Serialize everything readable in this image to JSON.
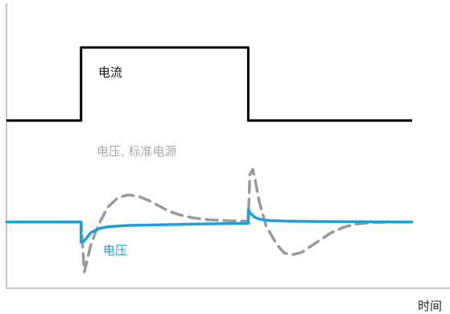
{
  "chart_data": {
    "type": "line",
    "xlabel": "时间",
    "ylabel": "",
    "xlim": [
      0,
      100
    ],
    "ylim": [
      0,
      100
    ],
    "grid": false,
    "series": [
      {
        "name": "电流",
        "color": "#000000",
        "style": "solid",
        "points": [
          [
            0,
            62
          ],
          [
            18.4,
            62
          ],
          [
            18.4,
            89
          ],
          [
            59.6,
            89
          ],
          [
            59.6,
            62
          ],
          [
            100,
            62
          ]
        ]
      },
      {
        "name": "电压, 标准电源",
        "color": "#9a9a9a",
        "style": "dashed",
        "points": [
          [
            0,
            24.5
          ],
          [
            18.4,
            24.5
          ],
          [
            19.2,
            6
          ],
          [
            20.8,
            16
          ],
          [
            22.7,
            23.5
          ],
          [
            25,
            30
          ],
          [
            27.5,
            33.5
          ],
          [
            30,
            34.5
          ],
          [
            32.5,
            34
          ],
          [
            35,
            32.5
          ],
          [
            37.5,
            30.5
          ],
          [
            40,
            28.5
          ],
          [
            43,
            27
          ],
          [
            46,
            26
          ],
          [
            50,
            25.3
          ],
          [
            55,
            24.9
          ],
          [
            59.6,
            24.8
          ],
          [
            60,
            42
          ],
          [
            60.7,
            44
          ],
          [
            61.3,
            40
          ],
          [
            62.3,
            32
          ],
          [
            64,
            23
          ],
          [
            66.7,
            16
          ],
          [
            68.5,
            13
          ],
          [
            70.5,
            12.4
          ],
          [
            72.7,
            13.2
          ],
          [
            75,
            15.5
          ],
          [
            77.5,
            18
          ],
          [
            80,
            20.5
          ],
          [
            83,
            22.5
          ],
          [
            86,
            23.7
          ],
          [
            90,
            24.3
          ],
          [
            95,
            24.5
          ],
          [
            100,
            24.5
          ]
        ]
      },
      {
        "name": "电压",
        "color": "#1e9fd8",
        "style": "solid",
        "points": [
          [
            0,
            24.5
          ],
          [
            18.4,
            24.5
          ],
          [
            18.4,
            17
          ],
          [
            19.2,
            17.5
          ],
          [
            20.8,
            20.5
          ],
          [
            22.7,
            22
          ],
          [
            25,
            22.7
          ],
          [
            27.5,
            23
          ],
          [
            30,
            23.2
          ],
          [
            40,
            23.5
          ],
          [
            50,
            23.8
          ],
          [
            59.6,
            24
          ],
          [
            59.6,
            29
          ],
          [
            60.2,
            27.5
          ],
          [
            61.3,
            26.2
          ],
          [
            62.3,
            25.6
          ],
          [
            63.5,
            25.2
          ],
          [
            65,
            25
          ],
          [
            70,
            24.8
          ],
          [
            80,
            24.6
          ],
          [
            100,
            24.5
          ]
        ]
      }
    ]
  }
}
